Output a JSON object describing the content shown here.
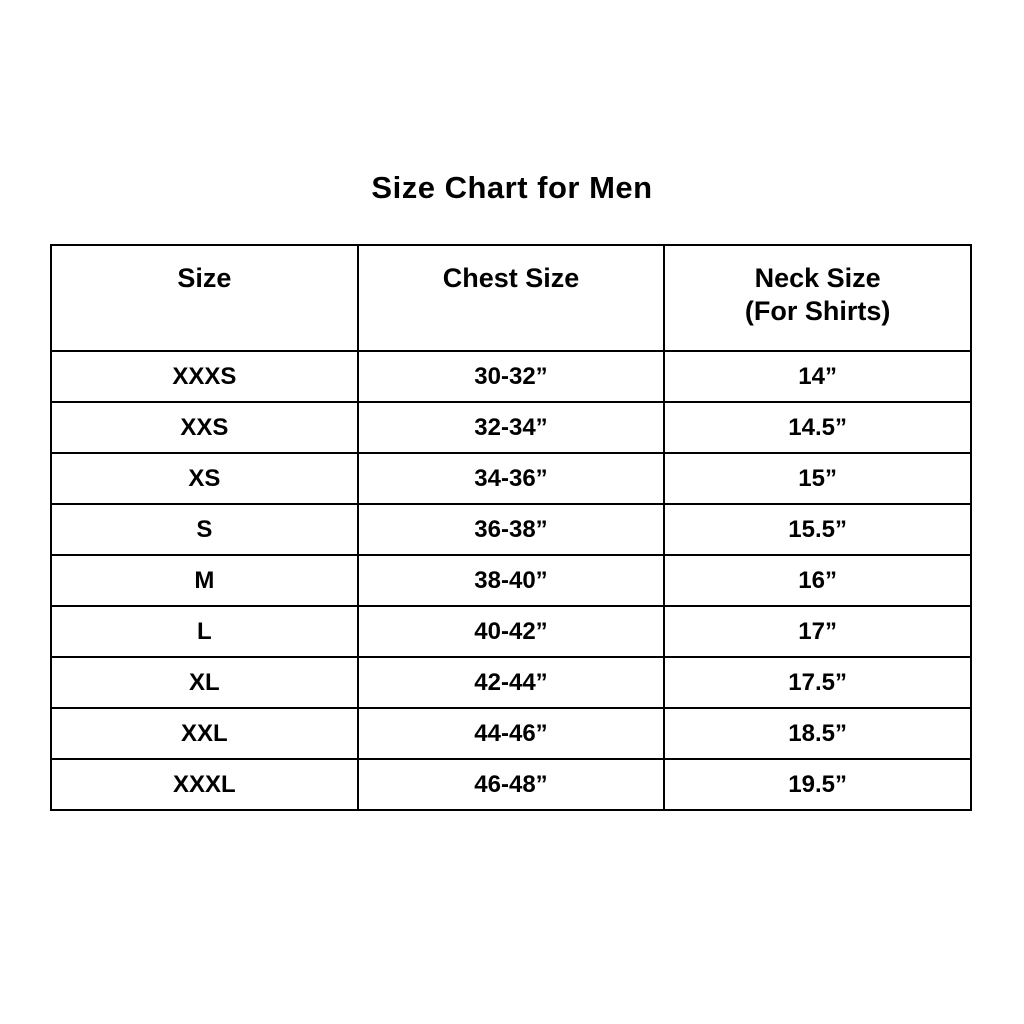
{
  "page": {
    "title": "Size Chart for Men"
  },
  "chart_data": {
    "type": "table",
    "title": "Size Chart for Men",
    "columns": [
      "Size",
      "Chest Size",
      "Neck Size (For Shirts)"
    ],
    "header_lines": [
      [
        "Size"
      ],
      [
        "Chest Size"
      ],
      [
        "Neck Size",
        "(For Shirts)"
      ]
    ],
    "rows": [
      [
        "XXXS",
        "30-32”",
        "14”"
      ],
      [
        "XXS",
        "32-34”",
        "14.5”"
      ],
      [
        "XS",
        "34-36”",
        "15”"
      ],
      [
        "S",
        "36-38”",
        "15.5”"
      ],
      [
        "M",
        "38-40”",
        "16”"
      ],
      [
        "L",
        "40-42”",
        "17”"
      ],
      [
        "XL",
        "42-44”",
        "17.5”"
      ],
      [
        "XXL",
        "44-46”",
        "18.5”"
      ],
      [
        "XXXL",
        "46-48”",
        "19.5”"
      ]
    ],
    "layout": {
      "text_color": "#000000",
      "border_color": "#000000",
      "background": "#ffffff"
    }
  }
}
